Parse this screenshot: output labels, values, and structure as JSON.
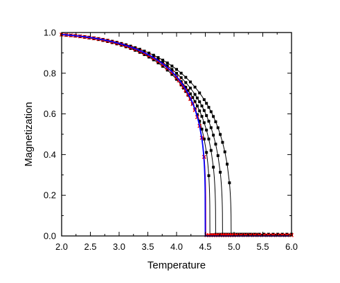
{
  "chart_data": {
    "type": "line",
    "title": "",
    "xlabel": "Temperature",
    "ylabel": "Magnetization",
    "xlim": [
      2.0,
      6.0
    ],
    "ylim": [
      0.0,
      1.0
    ],
    "xticks": [
      "2.0",
      "2.5",
      "3.0",
      "3.5",
      "4.0",
      "4.5",
      "5.0",
      "5.5",
      "6.0"
    ],
    "yticks": [
      "0.0",
      "0.2",
      "0.4",
      "0.6",
      "0.8",
      "1.0"
    ],
    "grid": false,
    "legend": "none",
    "series": [
      {
        "color": "#000000",
        "marker": "square",
        "markevery": 2,
        "tc": 4.95,
        "beta": 0.36,
        "tail": 0.008
      },
      {
        "color": "#000000",
        "marker": "square",
        "markevery": 2,
        "tc": 4.8,
        "beta": 0.34,
        "tail": 0.008
      },
      {
        "color": "#000000",
        "marker": "square",
        "markevery": 2,
        "tc": 4.68,
        "beta": 0.32,
        "tail": 0.008
      },
      {
        "color": "#000000",
        "marker": "square",
        "markevery": 2,
        "tc": 4.58,
        "beta": 0.3,
        "tail": 0.006
      },
      {
        "color": "#ff0000",
        "marker": "x",
        "markevery": 2,
        "tc": 4.51,
        "beta": 0.26,
        "tail": 0.004
      },
      {
        "color": "#0000ff",
        "marker": "none",
        "markevery": 1,
        "tc": 4.5,
        "beta": 0.25,
        "tail": 0.0
      }
    ]
  }
}
